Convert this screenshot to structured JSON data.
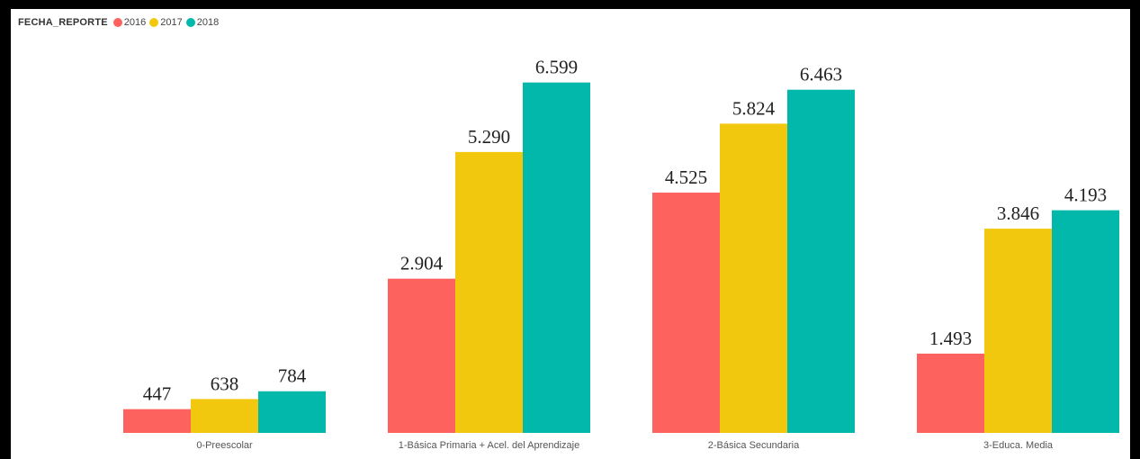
{
  "legend": {
    "title": "FECHA_REPORTE",
    "items": [
      {
        "label": "2016",
        "color": "#fd625e"
      },
      {
        "label": "2017",
        "color": "#f2c80f"
      },
      {
        "label": "2018",
        "color": "#01b8aa"
      }
    ]
  },
  "chart_data": {
    "type": "bar",
    "title": "",
    "xlabel": "",
    "ylabel": "",
    "ylim": [
      0,
      7000
    ],
    "grid": false,
    "legend_position": "top-left",
    "categories": [
      "0-Preescolar",
      "1-Básica Primaria + Acel. del Aprendizaje",
      "2-Básica Secundaria",
      "3-Educa. Media"
    ],
    "series": [
      {
        "name": "2016",
        "color": "#fd625e",
        "values": [
          447,
          2904,
          4525,
          1493
        ],
        "labels": [
          "447",
          "2.904",
          "4.525",
          "1.493"
        ]
      },
      {
        "name": "2017",
        "color": "#f2c80f",
        "values": [
          638,
          5290,
          5824,
          3846
        ],
        "labels": [
          "638",
          "5.290",
          "5.824",
          "3.846"
        ]
      },
      {
        "name": "2018",
        "color": "#01b8aa",
        "values": [
          784,
          6599,
          6463,
          4193
        ],
        "labels": [
          "784",
          "6.599",
          "6.463",
          "4.193"
        ]
      }
    ]
  }
}
